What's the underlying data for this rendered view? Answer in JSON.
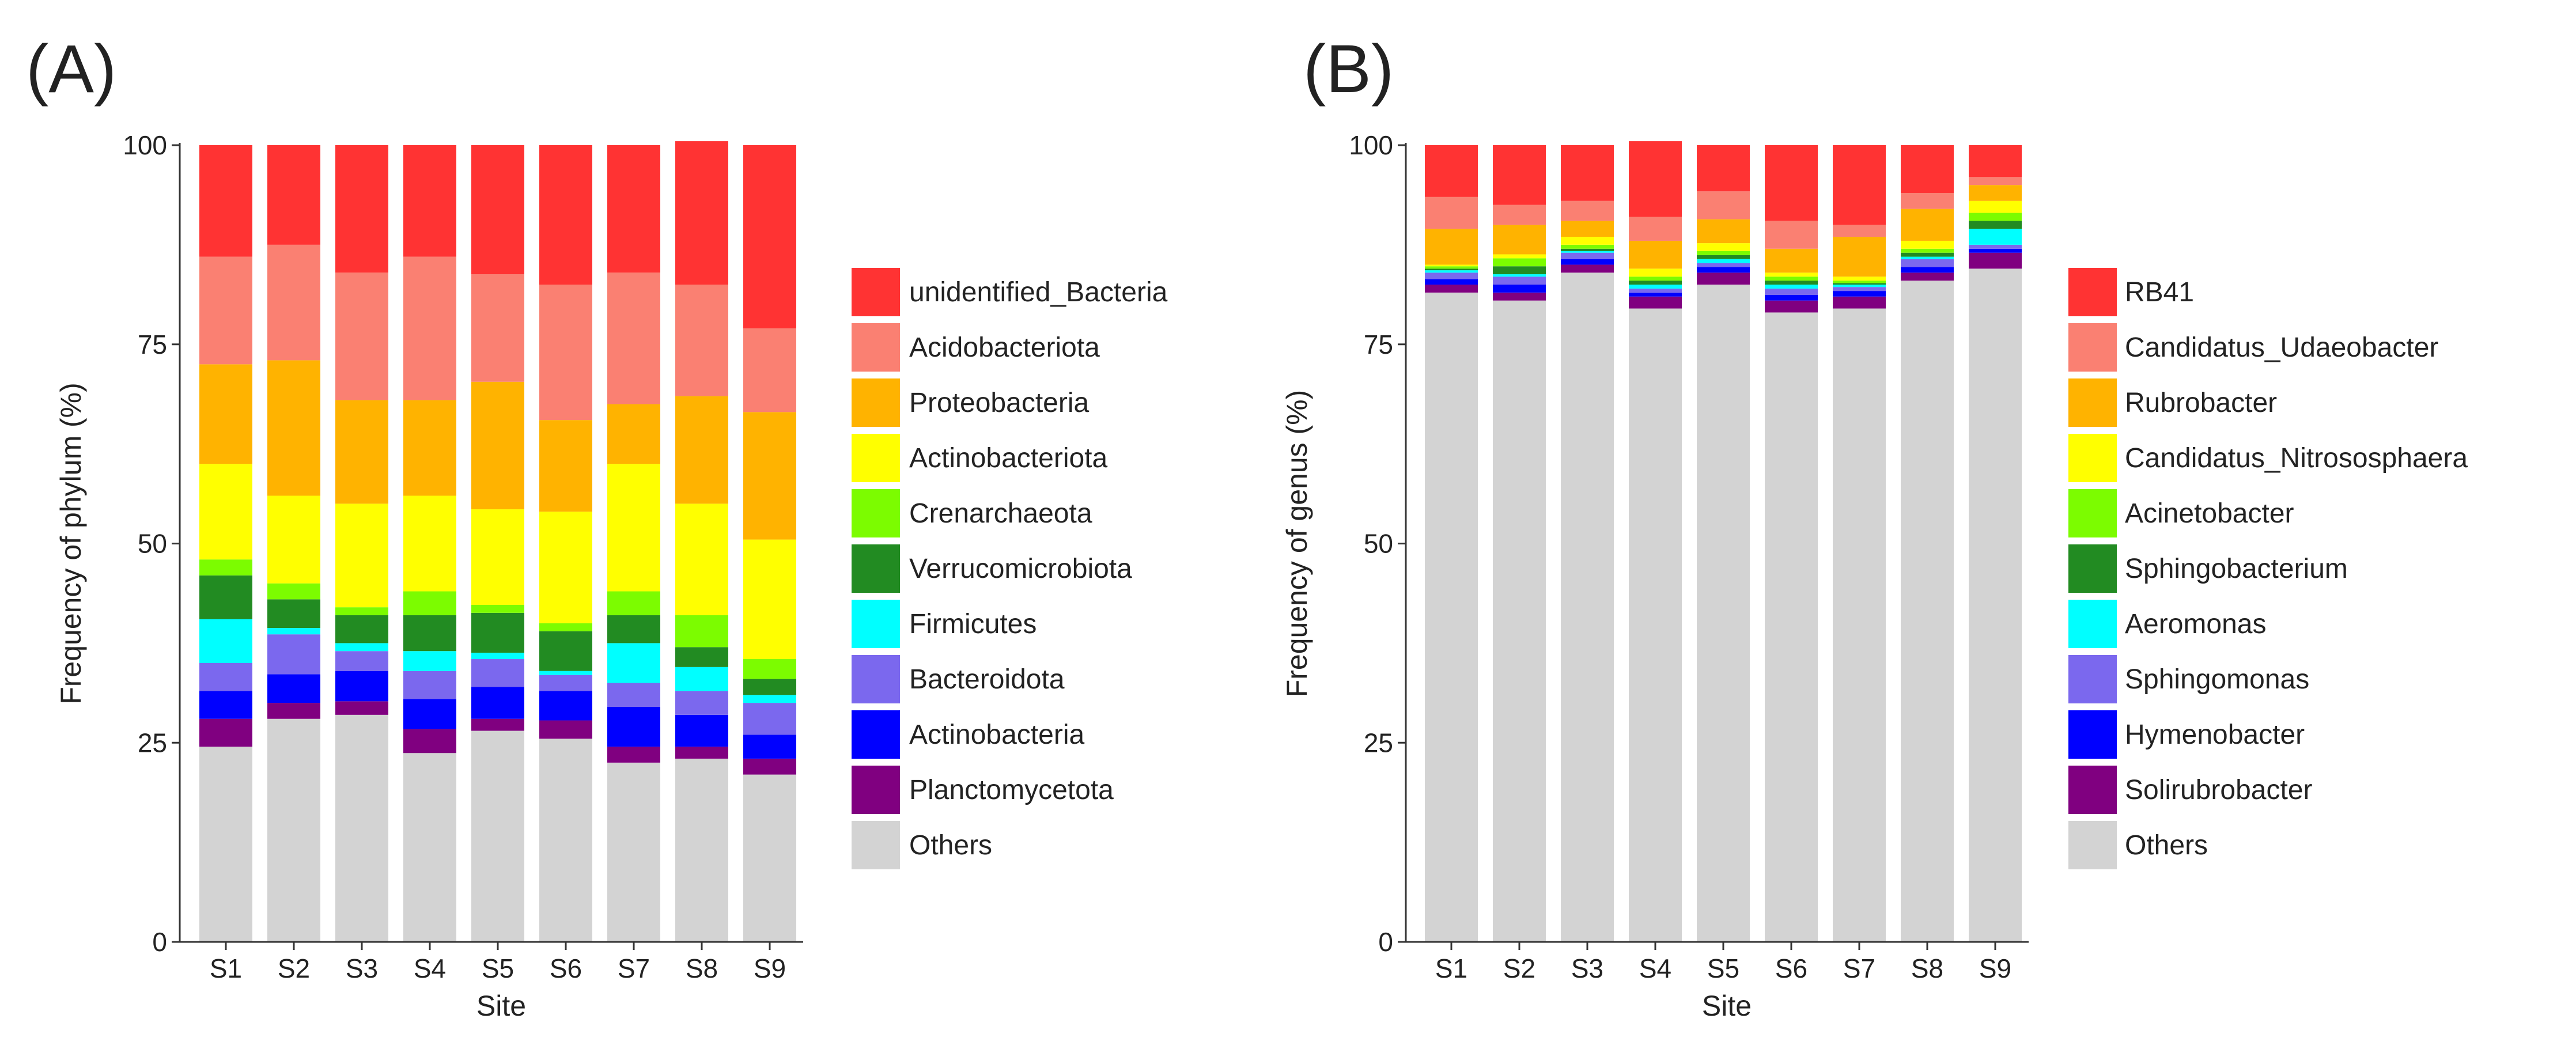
{
  "chart_data": [
    {
      "type": "bar",
      "stacked": true,
      "panel_label": "(A)",
      "xlabel": "Site",
      "ylabel": "Frequency of phylum (%)",
      "ylim": [
        0,
        100
      ],
      "yticks": [
        0,
        25,
        50,
        75,
        100
      ],
      "grid": false,
      "legend_position": "right",
      "categories": [
        "S1",
        "S2",
        "S3",
        "S4",
        "S5",
        "S6",
        "S7",
        "S8",
        "S9"
      ],
      "series": [
        {
          "name": "Others",
          "color": "#D3D3D3",
          "values": [
            24.5,
            28,
            28.5,
            23.7,
            26.5,
            25.5,
            22.5,
            23,
            21
          ]
        },
        {
          "name": "Planctomycetota",
          "color": "#800080",
          "values": [
            3.5,
            2,
            1.7,
            3,
            1.5,
            2.3,
            2,
            1.5,
            2
          ]
        },
        {
          "name": "Actinobacteria",
          "color": "#0000FF",
          "values": [
            3.5,
            3.6,
            3.8,
            3.8,
            4,
            3.7,
            5,
            4,
            3
          ]
        },
        {
          "name": "Bacteroidota",
          "color": "#7B68EE",
          "values": [
            3.5,
            5,
            2.5,
            3.5,
            3.5,
            2,
            3,
            3,
            4
          ]
        },
        {
          "name": "Firmicutes",
          "color": "#00FFFF",
          "values": [
            5.5,
            0.8,
            1,
            2.5,
            0.8,
            0.5,
            5,
            3,
            1
          ]
        },
        {
          "name": "Verrucomicrobiota",
          "color": "#228B22",
          "values": [
            5.5,
            3.6,
            3.5,
            4.5,
            5,
            5,
            3.5,
            2.5,
            2
          ]
        },
        {
          "name": "Crenarchaeota",
          "color": "#7CFC00",
          "values": [
            2,
            2,
            1,
            3,
            1,
            1,
            3,
            4,
            2.5
          ]
        },
        {
          "name": "Actinobacteriota",
          "color": "#FFFF00",
          "values": [
            12,
            11,
            13,
            12,
            12,
            14,
            16,
            14,
            15
          ]
        },
        {
          "name": "Proteobacteria",
          "color": "#FFB300",
          "values": [
            12.5,
            17,
            13,
            12,
            16,
            11.5,
            7.5,
            13.5,
            16
          ]
        },
        {
          "name": "Acidobacteriota",
          "color": "#FA8072",
          "values": [
            13.5,
            14.5,
            16,
            18,
            13.5,
            17,
            16.5,
            14,
            10.5
          ]
        },
        {
          "name": "unidentified_Bacteria",
          "color": "#FF3333",
          "values": [
            14,
            12.5,
            16,
            14,
            16.2,
            17.5,
            16,
            18,
            23
          ]
        }
      ],
      "legend": [
        "unidentified_Bacteria",
        "Acidobacteriota",
        "Proteobacteria",
        "Actinobacteriota",
        "Crenarchaeota",
        "Verrucomicrobiota",
        "Firmicutes",
        "Bacteroidota",
        "Actinobacteria",
        "Planctomycetota",
        "Others"
      ]
    },
    {
      "type": "bar",
      "stacked": true,
      "panel_label": "(B)",
      "xlabel": "Site",
      "ylabel": "Frequency of genus (%)",
      "ylim": [
        0,
        100
      ],
      "yticks": [
        0,
        25,
        50,
        75,
        100
      ],
      "grid": false,
      "legend_position": "right",
      "categories": [
        "S1",
        "S2",
        "S3",
        "S4",
        "S5",
        "S6",
        "S7",
        "S8",
        "S9"
      ],
      "series": [
        {
          "name": "Others",
          "color": "#D3D3D3",
          "values": [
            81.5,
            80.5,
            84,
            79.5,
            82.5,
            79,
            79.5,
            83,
            84.5
          ]
        },
        {
          "name": "Solirubrobacter",
          "color": "#800080",
          "values": [
            1,
            1,
            1,
            1.5,
            1.5,
            1.5,
            1.5,
            1,
            2
          ]
        },
        {
          "name": "Hymenobacter",
          "color": "#0000FF",
          "values": [
            0.7,
            1,
            0.7,
            0.5,
            0.7,
            0.7,
            0.7,
            0.7,
            0.5
          ]
        },
        {
          "name": "Sphingomonas",
          "color": "#7B68EE",
          "values": [
            0.8,
            1,
            0.8,
            0.5,
            0.5,
            0.8,
            0.5,
            1,
            0.5
          ]
        },
        {
          "name": "Aeromonas",
          "color": "#00FFFF",
          "values": [
            0.3,
            0.3,
            0.2,
            0.5,
            0.5,
            0.5,
            0.3,
            0.3,
            2
          ]
        },
        {
          "name": "Sphingobacterium",
          "color": "#228B22",
          "values": [
            0.2,
            1,
            0.3,
            0.5,
            0.5,
            0.5,
            0.2,
            0.5,
            1
          ]
        },
        {
          "name": "Acinetobacter",
          "color": "#7CFC00",
          "values": [
            0.3,
            1,
            0.5,
            0.5,
            0.5,
            0.5,
            0.3,
            0.5,
            1
          ]
        },
        {
          "name": "Candidatus_Nitrososphaera",
          "color": "#FFFF00",
          "values": [
            0.2,
            0.5,
            1,
            1,
            1,
            0.5,
            0.5,
            1,
            1.5
          ]
        },
        {
          "name": "Rubrobacter",
          "color": "#FFB300",
          "values": [
            4.5,
            3.7,
            2,
            3.5,
            3,
            3,
            5,
            4,
            2
          ]
        },
        {
          "name": "Candidatus_Udaeobacter",
          "color": "#FA8072",
          "values": [
            4,
            2.5,
            2.5,
            3,
            3.5,
            3.5,
            1.5,
            2,
            1
          ]
        },
        {
          "name": "RB41",
          "color": "#FF3333",
          "values": [
            6.5,
            7.5,
            7,
            9.5,
            5.8,
            9.5,
            10,
            6,
            4
          ]
        }
      ],
      "legend": [
        "RB41",
        "Candidatus_Udaeobacter",
        "Rubrobacter",
        "Candidatus_Nitrososphaera",
        "Acinetobacter",
        "Sphingobacterium",
        "Aeromonas",
        "Sphingomonas",
        "Hymenobacter",
        "Solirubrobacter",
        "Others"
      ]
    }
  ]
}
